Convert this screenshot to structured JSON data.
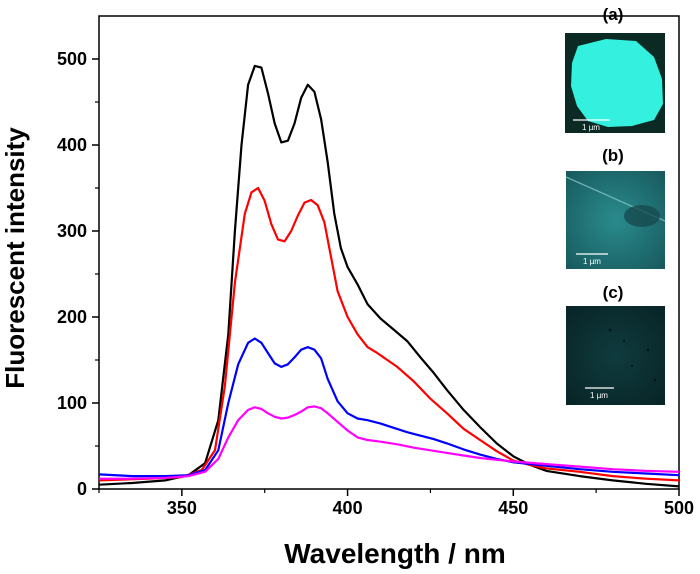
{
  "chart_data": {
    "type": "line",
    "xlabel": "Wavelength / nm",
    "ylabel": "Fluorescent intensity",
    "xlim": [
      325,
      500
    ],
    "ylim": [
      0,
      550
    ],
    "x_ticks": [
      350,
      400,
      450,
      500
    ],
    "y_ticks": [
      0,
      100,
      200,
      300,
      400,
      500
    ],
    "grid": false,
    "legend": "none",
    "series": [
      {
        "color": "#000000",
        "points": [
          [
            325,
            5
          ],
          [
            335,
            7
          ],
          [
            345,
            10
          ],
          [
            352,
            16
          ],
          [
            357,
            30
          ],
          [
            361,
            80
          ],
          [
            364,
            180
          ],
          [
            366,
            300
          ],
          [
            368,
            400
          ],
          [
            370,
            470
          ],
          [
            372,
            492
          ],
          [
            374,
            490
          ],
          [
            376,
            460
          ],
          [
            378,
            425
          ],
          [
            380,
            403
          ],
          [
            382,
            405
          ],
          [
            384,
            425
          ],
          [
            386,
            455
          ],
          [
            388,
            470
          ],
          [
            390,
            462
          ],
          [
            392,
            430
          ],
          [
            394,
            380
          ],
          [
            396,
            320
          ],
          [
            398,
            280
          ],
          [
            400,
            258
          ],
          [
            403,
            238
          ],
          [
            406,
            215
          ],
          [
            410,
            198
          ],
          [
            414,
            185
          ],
          [
            418,
            172
          ],
          [
            422,
            153
          ],
          [
            426,
            135
          ],
          [
            430,
            115
          ],
          [
            435,
            92
          ],
          [
            440,
            72
          ],
          [
            445,
            53
          ],
          [
            450,
            38
          ],
          [
            455,
            28
          ],
          [
            460,
            21
          ],
          [
            470,
            15
          ],
          [
            480,
            10
          ],
          [
            490,
            6
          ],
          [
            500,
            3
          ]
        ]
      },
      {
        "color": "#ff0000",
        "points": [
          [
            325,
            10
          ],
          [
            340,
            12
          ],
          [
            350,
            14
          ],
          [
            356,
            22
          ],
          [
            360,
            45
          ],
          [
            363,
            120
          ],
          [
            366,
            240
          ],
          [
            369,
            320
          ],
          [
            371,
            345
          ],
          [
            373,
            350
          ],
          [
            375,
            335
          ],
          [
            377,
            308
          ],
          [
            379,
            290
          ],
          [
            381,
            288
          ],
          [
            383,
            300
          ],
          [
            385,
            318
          ],
          [
            387,
            333
          ],
          [
            389,
            336
          ],
          [
            391,
            330
          ],
          [
            393,
            310
          ],
          [
            395,
            270
          ],
          [
            397,
            230
          ],
          [
            400,
            200
          ],
          [
            403,
            180
          ],
          [
            406,
            165
          ],
          [
            409,
            158
          ],
          [
            412,
            150
          ],
          [
            415,
            142
          ],
          [
            420,
            125
          ],
          [
            425,
            105
          ],
          [
            430,
            88
          ],
          [
            435,
            70
          ],
          [
            440,
            57
          ],
          [
            445,
            44
          ],
          [
            450,
            33
          ],
          [
            455,
            28
          ],
          [
            460,
            24
          ],
          [
            470,
            20
          ],
          [
            480,
            15
          ],
          [
            490,
            12
          ],
          [
            500,
            10
          ]
        ]
      },
      {
        "color": "#0000ff",
        "points": [
          [
            325,
            17
          ],
          [
            335,
            15
          ],
          [
            345,
            15
          ],
          [
            352,
            16
          ],
          [
            357,
            22
          ],
          [
            361,
            45
          ],
          [
            364,
            100
          ],
          [
            367,
            145
          ],
          [
            370,
            170
          ],
          [
            372,
            175
          ],
          [
            374,
            170
          ],
          [
            376,
            158
          ],
          [
            378,
            146
          ],
          [
            380,
            142
          ],
          [
            382,
            145
          ],
          [
            384,
            153
          ],
          [
            386,
            162
          ],
          [
            388,
            165
          ],
          [
            390,
            162
          ],
          [
            392,
            152
          ],
          [
            394,
            128
          ],
          [
            397,
            102
          ],
          [
            400,
            88
          ],
          [
            403,
            82
          ],
          [
            406,
            80
          ],
          [
            410,
            76
          ],
          [
            414,
            71
          ],
          [
            418,
            66
          ],
          [
            422,
            62
          ],
          [
            426,
            58
          ],
          [
            430,
            53
          ],
          [
            435,
            46
          ],
          [
            440,
            40
          ],
          [
            445,
            35
          ],
          [
            450,
            31
          ],
          [
            460,
            27
          ],
          [
            470,
            23
          ],
          [
            480,
            20
          ],
          [
            490,
            18
          ],
          [
            500,
            16
          ]
        ]
      },
      {
        "color": "#ff00ff",
        "points": [
          [
            325,
            12
          ],
          [
            335,
            12
          ],
          [
            345,
            13
          ],
          [
            352,
            15
          ],
          [
            357,
            20
          ],
          [
            361,
            35
          ],
          [
            364,
            60
          ],
          [
            367,
            80
          ],
          [
            370,
            92
          ],
          [
            372,
            95
          ],
          [
            374,
            93
          ],
          [
            376,
            88
          ],
          [
            378,
            84
          ],
          [
            380,
            82
          ],
          [
            382,
            83
          ],
          [
            384,
            86
          ],
          [
            386,
            90
          ],
          [
            388,
            95
          ],
          [
            390,
            96
          ],
          [
            392,
            94
          ],
          [
            394,
            88
          ],
          [
            397,
            78
          ],
          [
            400,
            68
          ],
          [
            403,
            60
          ],
          [
            406,
            57
          ],
          [
            410,
            55
          ],
          [
            415,
            52
          ],
          [
            420,
            48
          ],
          [
            425,
            45
          ],
          [
            430,
            42
          ],
          [
            435,
            39
          ],
          [
            440,
            36
          ],
          [
            445,
            34
          ],
          [
            450,
            32
          ],
          [
            460,
            29
          ],
          [
            470,
            26
          ],
          [
            480,
            23
          ],
          [
            490,
            21
          ],
          [
            500,
            20
          ]
        ]
      }
    ]
  },
  "insets": [
    {
      "label": "(a)",
      "scale": "1 µm",
      "bg": "#0b2a24",
      "feature": "#33f0df"
    },
    {
      "label": "(b)",
      "scale": "1 µm",
      "bg": "#1d6e72",
      "feature": "#174a50"
    },
    {
      "label": "(c)",
      "scale": "1 µm",
      "bg": "#0b2f32",
      "feature": "#123a3d"
    }
  ]
}
